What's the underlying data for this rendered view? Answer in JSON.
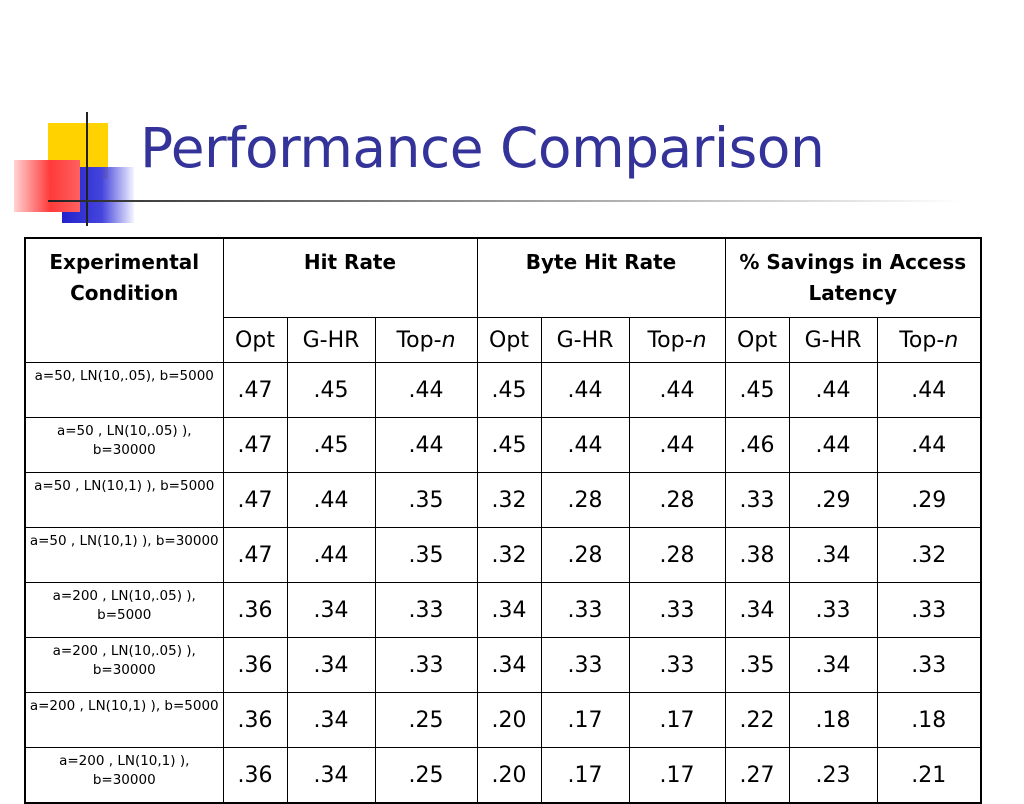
{
  "slide": {
    "title": "Performance Comparison"
  },
  "table": {
    "header_condition": "Experimental Condition",
    "groups": [
      "Hit Rate",
      "Byte Hit Rate",
      "% Savings in Access Latency"
    ],
    "subcolumns": [
      {
        "label": "Opt",
        "prefix": "Opt",
        "italic_suffix": ""
      },
      {
        "label": "G-HR",
        "prefix": "G-HR",
        "italic_suffix": ""
      },
      {
        "label": "Top-n",
        "prefix": "Top-",
        "italic_suffix": "n"
      }
    ],
    "rows": [
      {
        "condition": "a=50, LN(10,.05), b=5000",
        "values": [
          ".47",
          ".45",
          ".44",
          ".45",
          ".44",
          ".44",
          ".45",
          ".44",
          ".44"
        ]
      },
      {
        "condition": "a=50 , LN(10,.05) ), b=30000",
        "values": [
          ".47",
          ".45",
          ".44",
          ".45",
          ".44",
          ".44",
          ".46",
          ".44",
          ".44"
        ]
      },
      {
        "condition": "a=50 , LN(10,1) ), b=5000",
        "values": [
          ".47",
          ".44",
          ".35",
          ".32",
          ".28",
          ".28",
          ".33",
          ".29",
          ".29"
        ]
      },
      {
        "condition": "a=50 , LN(10,1) ), b=30000",
        "values": [
          ".47",
          ".44",
          ".35",
          ".32",
          ".28",
          ".28",
          ".38",
          ".34",
          ".32"
        ]
      },
      {
        "condition": "a=200 , LN(10,.05) ), b=5000",
        "values": [
          ".36",
          ".34",
          ".33",
          ".34",
          ".33",
          ".33",
          ".34",
          ".33",
          ".33"
        ]
      },
      {
        "condition": "a=200 , LN(10,.05) ), b=30000",
        "values": [
          ".36",
          ".34",
          ".33",
          ".34",
          ".33",
          ".33",
          ".35",
          ".34",
          ".33"
        ]
      },
      {
        "condition": "a=200 , LN(10,1) ), b=5000",
        "values": [
          ".36",
          ".34",
          ".25",
          ".20",
          ".17",
          ".17",
          ".22",
          ".18",
          ".18"
        ]
      },
      {
        "condition": "a=200 , LN(10,1) ), b=30000",
        "values": [
          ".36",
          ".34",
          ".25",
          ".20",
          ".17",
          ".17",
          ".27",
          ".23",
          ".21"
        ]
      }
    ]
  },
  "colors": {
    "title": "#333399",
    "accent_yellow": "#ffd200",
    "accent_blue": "#2222cc",
    "accent_red": "#ff3a3a"
  }
}
